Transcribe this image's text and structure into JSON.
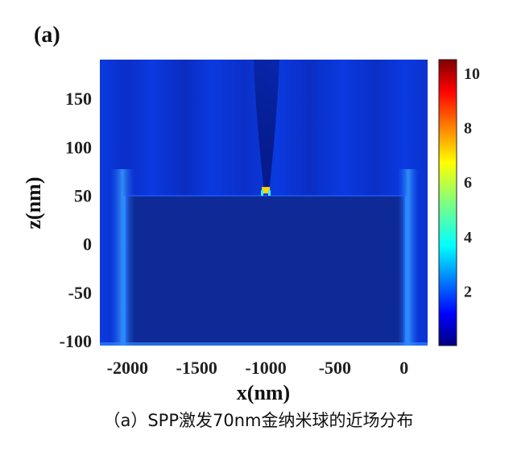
{
  "panel_label": "(a)",
  "caption": "（a）SPP激发70nm金纳米球的近场分布",
  "chart_data": {
    "type": "heatmap",
    "title": "",
    "xlabel": "x(nm)",
    "ylabel": "z(nm)",
    "xlim": [
      -2200,
      170
    ],
    "ylim": [
      -105,
      190
    ],
    "xticks": [
      -2000,
      -1500,
      -1000,
      -500,
      0
    ],
    "xtick_labels": [
      "-2000",
      "-1500",
      "-1000",
      "-500",
      "0"
    ],
    "yticks": [
      150,
      100,
      50,
      0,
      -50,
      -100
    ],
    "ytick_labels": [
      "150",
      "100",
      "50",
      "0",
      "-50",
      "-100"
    ],
    "colorbar": {
      "range": [
        0,
        10.5
      ],
      "ticks": [
        10,
        8,
        6,
        4,
        2
      ],
      "tick_labels": [
        "10",
        "8",
        "6",
        "4",
        "2"
      ],
      "colormap": "jet"
    },
    "features": {
      "film_top_z": 52,
      "film_x_range": [
        -2050,
        0
      ],
      "hotspot": {
        "x": -1000,
        "z": 52,
        "max_value": 6
      }
    }
  },
  "colors": {
    "background_field": "#0a2fd0",
    "film_field": "#0e2a96",
    "hotspot": "#ffd800"
  }
}
